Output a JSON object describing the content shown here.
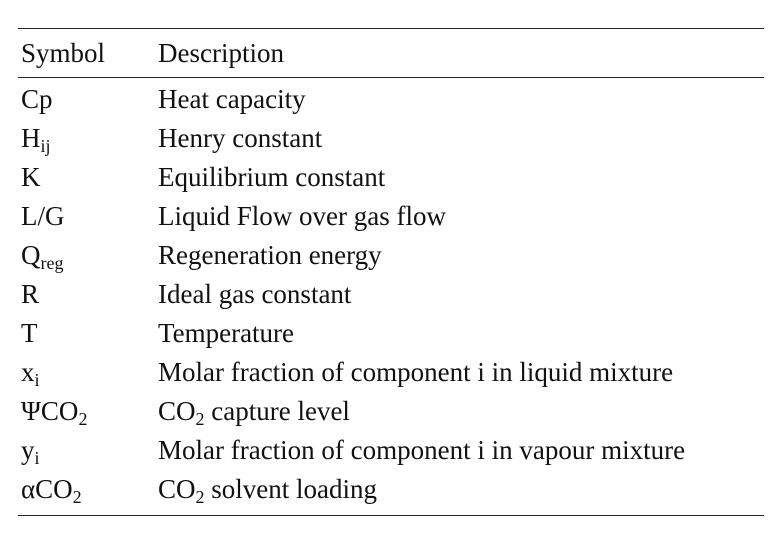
{
  "table": {
    "header": {
      "symbol": "Symbol",
      "description": "Description"
    },
    "rows": [
      {
        "symbol": "Cp",
        "description": "Heat capacity"
      },
      {
        "symbol": "H",
        "symbol_sub": "ij",
        "description": "Henry constant"
      },
      {
        "symbol": "K",
        "description": "Equilibrium constant"
      },
      {
        "symbol": "L/G",
        "description": "Liquid Flow over gas flow"
      },
      {
        "symbol": "Q",
        "symbol_sub": "reg",
        "description": "Regeneration energy"
      },
      {
        "symbol": "R",
        "description": "Ideal gas constant"
      },
      {
        "symbol": "T",
        "description": "Temperature"
      },
      {
        "symbol": "x",
        "symbol_sub": "i",
        "description": "Molar fraction of component i in liquid mixture"
      },
      {
        "symbol": "ΨCO",
        "symbol_sub": "2",
        "description_prefix": "CO",
        "description_sub": "2",
        "description": " capture level"
      },
      {
        "symbol": "y",
        "symbol_sub": "i",
        "description": "Molar fraction of component i in vapour mixture"
      },
      {
        "symbol": "αCO",
        "symbol_sub": "2",
        "description_prefix": "CO",
        "description_sub": "2",
        "description": " solvent loading"
      }
    ]
  }
}
